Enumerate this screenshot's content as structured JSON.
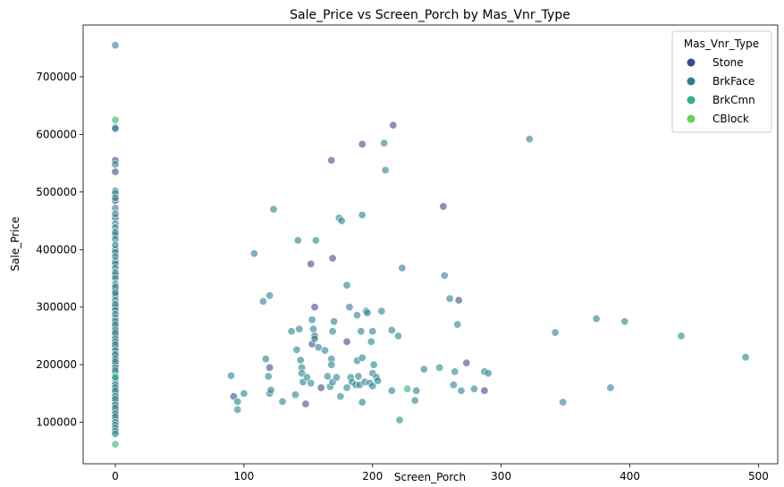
{
  "chart_data": {
    "type": "scatter",
    "title": "Sale_Price vs Screen_Porch by Mas_Vnr_Type",
    "xlabel": "Screen_Porch",
    "ylabel": "Sale_Price",
    "xlim": [
      -25,
      515
    ],
    "ylim": [
      28000,
      790000
    ],
    "xticks": [
      0,
      100,
      200,
      300,
      400,
      500
    ],
    "yticks": [
      100000,
      200000,
      300000,
      400000,
      500000,
      600000,
      700000
    ],
    "grid": false,
    "legend": {
      "title": "Mas_Vnr_Type",
      "placement": "top-right"
    },
    "series": [
      {
        "name": "Stone",
        "color": "#3e4a89",
        "points": [
          [
            0,
            612000
          ],
          [
            0,
            555000
          ],
          [
            0,
            535000
          ],
          [
            0,
            485000
          ],
          [
            0,
            455000
          ],
          [
            0,
            425000
          ],
          [
            0,
            400000
          ],
          [
            0,
            380000
          ],
          [
            0,
            355000
          ],
          [
            0,
            330000
          ],
          [
            0,
            320000
          ],
          [
            0,
            300000
          ],
          [
            0,
            280000
          ],
          [
            0,
            265000
          ],
          [
            0,
            250000
          ],
          [
            0,
            230000
          ],
          [
            0,
            215000
          ],
          [
            0,
            200000
          ],
          [
            0,
            185000
          ],
          [
            0,
            170000
          ],
          [
            0,
            150000
          ],
          [
            0,
            135000
          ],
          [
            0,
            120000
          ],
          [
            0,
            105000
          ],
          [
            92,
            145000
          ],
          [
            148,
            132000
          ],
          [
            152,
            375000
          ],
          [
            155,
            300000
          ],
          [
            155,
            250000
          ],
          [
            153,
            236000
          ],
          [
            160,
            160000
          ],
          [
            168,
            555000
          ],
          [
            169,
            385000
          ],
          [
            180,
            240000
          ],
          [
            192,
            583000
          ],
          [
            216,
            616000
          ],
          [
            255,
            475000
          ],
          [
            267,
            312000
          ],
          [
            273,
            203000
          ],
          [
            287,
            155000
          ],
          [
            120,
            195000
          ]
        ]
      },
      {
        "name": "BrkFace",
        "color": "#26828e",
        "points": [
          [
            0,
            755000
          ],
          [
            0,
            610000
          ],
          [
            0,
            548000
          ],
          [
            0,
            502000
          ],
          [
            0,
            498000
          ],
          [
            0,
            490000
          ],
          [
            0,
            472000
          ],
          [
            0,
            462000
          ],
          [
            0,
            445000
          ],
          [
            0,
            438000
          ],
          [
            0,
            430000
          ],
          [
            0,
            418000
          ],
          [
            0,
            408000
          ],
          [
            0,
            395000
          ],
          [
            0,
            388000
          ],
          [
            0,
            375000
          ],
          [
            0,
            368000
          ],
          [
            0,
            360000
          ],
          [
            0,
            350000
          ],
          [
            0,
            340000
          ],
          [
            0,
            335000
          ],
          [
            0,
            325000
          ],
          [
            0,
            312000
          ],
          [
            0,
            305000
          ],
          [
            0,
            295000
          ],
          [
            0,
            288000
          ],
          [
            0,
            275000
          ],
          [
            0,
            270000
          ],
          [
            0,
            260000
          ],
          [
            0,
            255000
          ],
          [
            0,
            245000
          ],
          [
            0,
            240000
          ],
          [
            0,
            235000
          ],
          [
            0,
            225000
          ],
          [
            0,
            218000
          ],
          [
            0,
            210000
          ],
          [
            0,
            205000
          ],
          [
            0,
            195000
          ],
          [
            0,
            190000
          ],
          [
            0,
            180000
          ],
          [
            0,
            175000
          ],
          [
            0,
            165000
          ],
          [
            0,
            160000
          ],
          [
            0,
            155000
          ],
          [
            0,
            145000
          ],
          [
            0,
            140000
          ],
          [
            0,
            130000
          ],
          [
            0,
            125000
          ],
          [
            0,
            115000
          ],
          [
            0,
            110000
          ],
          [
            0,
            100000
          ],
          [
            0,
            95000
          ],
          [
            0,
            90000
          ],
          [
            0,
            85000
          ],
          [
            0,
            80000
          ],
          [
            90,
            181000
          ],
          [
            95,
            122000
          ],
          [
            95,
            136000
          ],
          [
            100,
            150000
          ],
          [
            108,
            393000
          ],
          [
            115,
            310000
          ],
          [
            117,
            210000
          ],
          [
            119,
            180000
          ],
          [
            120,
            320000
          ],
          [
            120,
            150000
          ],
          [
            121,
            156000
          ],
          [
            123,
            470000
          ],
          [
            130,
            136000
          ],
          [
            137,
            258000
          ],
          [
            140,
            148000
          ],
          [
            141,
            226000
          ],
          [
            142,
            416000
          ],
          [
            143,
            262000
          ],
          [
            144,
            208000
          ],
          [
            145,
            195000
          ],
          [
            145,
            185000
          ],
          [
            146,
            170000
          ],
          [
            149,
            178000
          ],
          [
            152,
            168000
          ],
          [
            153,
            278000
          ],
          [
            154,
            262000
          ],
          [
            155,
            245000
          ],
          [
            156,
            416000
          ],
          [
            158,
            230000
          ],
          [
            163,
            225000
          ],
          [
            165,
            180000
          ],
          [
            167,
            162000
          ],
          [
            168,
            210000
          ],
          [
            168,
            200000
          ],
          [
            169,
            258000
          ],
          [
            169,
            170000
          ],
          [
            170,
            275000
          ],
          [
            172,
            178000
          ],
          [
            174,
            455000
          ],
          [
            175,
            145000
          ],
          [
            176,
            450000
          ],
          [
            180,
            338000
          ],
          [
            180,
            160000
          ],
          [
            182,
            300000
          ],
          [
            183,
            178000
          ],
          [
            184,
            170000
          ],
          [
            187,
            165000
          ],
          [
            188,
            286000
          ],
          [
            188,
            207000
          ],
          [
            189,
            180000
          ],
          [
            190,
            165000
          ],
          [
            191,
            258000
          ],
          [
            192,
            460000
          ],
          [
            192,
            212000
          ],
          [
            192,
            135000
          ],
          [
            194,
            170000
          ],
          [
            195,
            293000
          ],
          [
            196,
            290000
          ],
          [
            198,
            168000
          ],
          [
            199,
            240000
          ],
          [
            200,
            258000
          ],
          [
            200,
            185000
          ],
          [
            200,
            163000
          ],
          [
            201,
            200000
          ],
          [
            203,
            178000
          ],
          [
            204,
            172000
          ],
          [
            207,
            293000
          ],
          [
            209,
            585000
          ],
          [
            210,
            538000
          ],
          [
            215,
            155000
          ],
          [
            215,
            260000
          ],
          [
            220,
            250000
          ],
          [
            221,
            104000
          ],
          [
            223,
            368000
          ],
          [
            233,
            138000
          ],
          [
            234,
            155000
          ],
          [
            240,
            192000
          ],
          [
            252,
            195000
          ],
          [
            256,
            355000
          ],
          [
            260,
            315000
          ],
          [
            263,
            165000
          ],
          [
            264,
            188000
          ],
          [
            266,
            270000
          ],
          [
            269,
            155000
          ],
          [
            279,
            158000
          ],
          [
            287,
            188000
          ],
          [
            290,
            185000
          ],
          [
            322,
            592000
          ],
          [
            342,
            256000
          ],
          [
            348,
            135000
          ],
          [
            374,
            280000
          ],
          [
            385,
            160000
          ],
          [
            396,
            275000
          ],
          [
            440,
            250000
          ],
          [
            490,
            213000
          ]
        ]
      },
      {
        "name": "BrkCmn",
        "color": "#2db27d",
        "points": [
          [
            0,
            625000
          ],
          [
            0,
            178000
          ],
          [
            0,
            62000
          ],
          [
            227,
            158000
          ]
        ]
      },
      {
        "name": "CBlock",
        "color": "#6ece58",
        "points": []
      }
    ]
  }
}
